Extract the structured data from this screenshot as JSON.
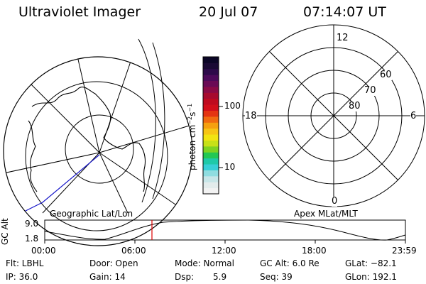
{
  "header": {
    "title": "Ultraviolet Imager",
    "date": "20 Jul 07",
    "time": "07:14:07 UT"
  },
  "colorbar": {
    "unit_label": "photon cm",
    "unit_sup1": "−2",
    "unit_mid": "s",
    "unit_sup2": "−1",
    "tick_high": "100",
    "tick_low": "10",
    "colors": [
      "#f2f2f2",
      "#e3ecec",
      "#c7e6e8",
      "#8fdde0",
      "#38cfd6",
      "#1fc9a8",
      "#22c853",
      "#7ed321",
      "#c7e117",
      "#f2e412",
      "#f7c515",
      "#f5a00f",
      "#f06a10",
      "#e43412",
      "#d20e1a",
      "#bf0a1f",
      "#a70a2e",
      "#8a0a45",
      "#6a0a55",
      "#4c0a5a",
      "#2d0a4a",
      "#1a0a34",
      "#0b0626"
    ]
  },
  "geo_map": {
    "label": "Geographic Lat/Lon"
  },
  "apex_map": {
    "label": "Apex MLat/MLT",
    "mlt_labels": {
      "top": "12",
      "left": "18",
      "right": "6",
      "bottom": "0"
    },
    "mlat_labels": [
      "60",
      "70",
      "80"
    ]
  },
  "altitude_plot": {
    "ylabel": "GC Alt",
    "y_ticks": [
      "9.0",
      "1.8"
    ],
    "x_ticks": [
      "00:00",
      "06:00",
      "12:00",
      "18:00",
      "23:59"
    ],
    "marker_color": "#dd0000"
  },
  "info": {
    "row1": {
      "flt": "Flt: LBHL",
      "door": "Door: Open",
      "mode": "Mode: Normal",
      "gcalt": "GC Alt: 6.0 Re",
      "glat": "GLat: −82.1"
    },
    "row2": {
      "ip": "IP: 36.0",
      "gain": "Gain: 14",
      "dsp_label": "Dsp:",
      "dsp_value": "5.9",
      "seq": "Seq: 39",
      "glon": "GLon: 192.1"
    }
  }
}
